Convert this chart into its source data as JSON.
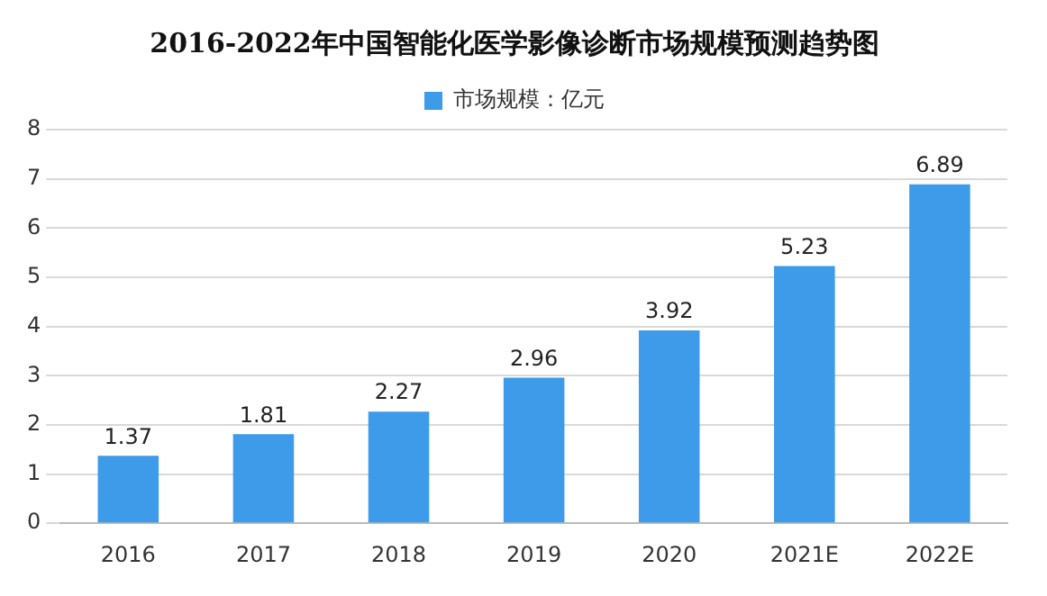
{
  "chart_data": {
    "type": "bar",
    "title": "2016-2022年中国智能化医学影像诊断市场规模预测趋势图",
    "categories": [
      "2016",
      "2017",
      "2018",
      "2019",
      "2020",
      "2021E",
      "2022E"
    ],
    "series": [
      {
        "name": "市场规模：亿元",
        "color": "#3d9be9",
        "values": [
          1.37,
          1.81,
          2.27,
          2.96,
          3.92,
          5.23,
          6.89
        ]
      }
    ],
    "ylim": [
      0,
      8
    ],
    "yticks": [
      0,
      1,
      2,
      3,
      4,
      5,
      6,
      7,
      8
    ],
    "grid": "y",
    "legend": "top",
    "data_labels": true
  }
}
